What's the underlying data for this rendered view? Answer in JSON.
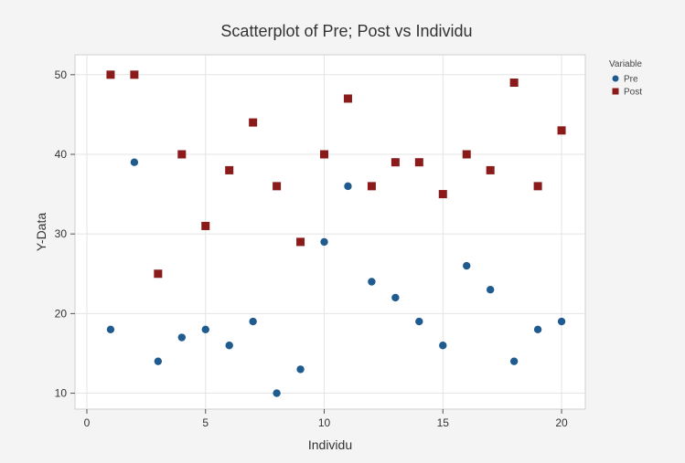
{
  "chart_data": {
    "type": "scatter",
    "title": "Scatterplot of Pre; Post vs Individu",
    "xlabel": "Individu",
    "ylabel": "Y-Data",
    "xlim": [
      -0.5,
      21
    ],
    "ylim": [
      8,
      52.5
    ],
    "xticks": [
      0,
      5,
      10,
      15,
      20
    ],
    "yticks": [
      10,
      20,
      30,
      40,
      50
    ],
    "grid": true,
    "legend": {
      "title": "Variable",
      "position": "right"
    },
    "series": [
      {
        "name": "Pre",
        "marker": "circle",
        "color": "#1f5b8e",
        "x": [
          1,
          2,
          3,
          4,
          5,
          6,
          7,
          8,
          9,
          10,
          11,
          12,
          13,
          14,
          15,
          16,
          17,
          18,
          19,
          20
        ],
        "y": [
          18,
          39,
          14,
          17,
          18,
          16,
          19,
          10,
          13,
          29,
          36,
          24,
          22,
          19,
          16,
          26,
          23,
          14,
          18,
          19
        ]
      },
      {
        "name": "Post",
        "marker": "square",
        "color": "#8b1a1a",
        "x": [
          1,
          2,
          3,
          4,
          5,
          6,
          7,
          8,
          9,
          10,
          11,
          12,
          13,
          14,
          15,
          16,
          17,
          18,
          19,
          20
        ],
        "y": [
          50,
          50,
          25,
          40,
          31,
          38,
          44,
          36,
          29,
          40,
          47,
          36,
          39,
          39,
          35,
          40,
          38,
          49,
          36,
          43
        ]
      }
    ]
  }
}
